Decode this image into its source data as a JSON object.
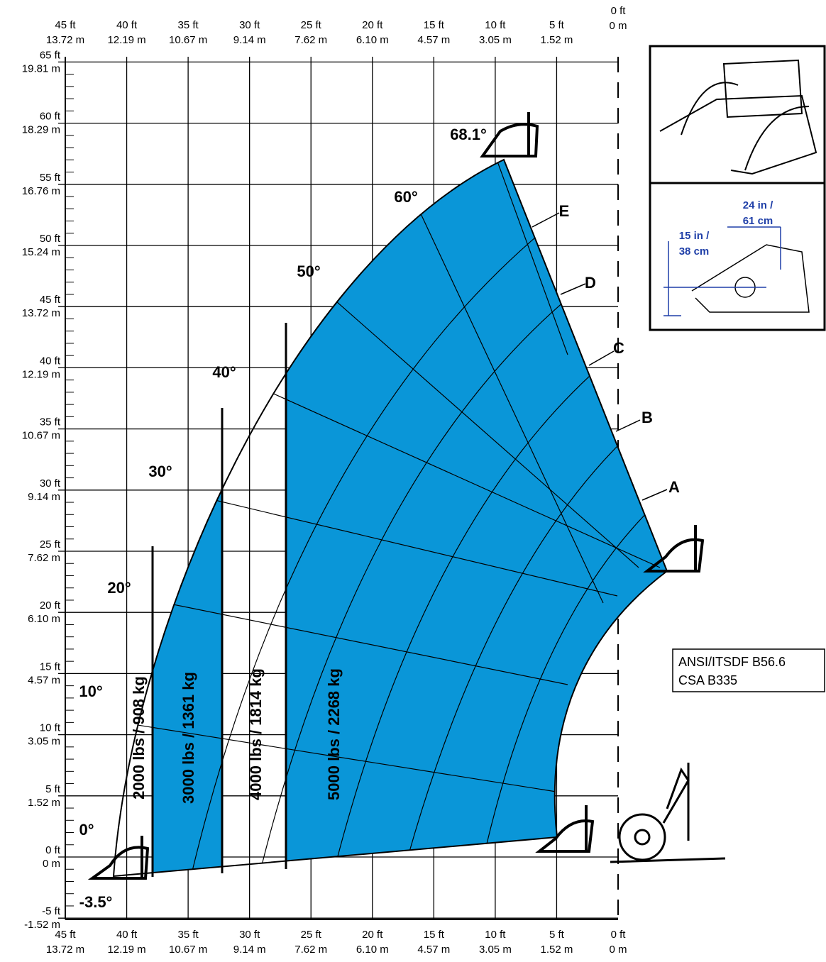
{
  "x_axis": [
    {
      "ft": "45 ft",
      "m": "13.72 m"
    },
    {
      "ft": "40 ft",
      "m": "12.19 m"
    },
    {
      "ft": "35 ft",
      "m": "10.67 m"
    },
    {
      "ft": "30 ft",
      "m": "9.14 m"
    },
    {
      "ft": "25 ft",
      "m": "7.62 m"
    },
    {
      "ft": "20 ft",
      "m": "6.10 m"
    },
    {
      "ft": "15 ft",
      "m": "4.57 m"
    },
    {
      "ft": "10 ft",
      "m": "3.05 m"
    },
    {
      "ft": "5 ft",
      "m": "1.52 m"
    },
    {
      "ft": "0 ft",
      "m": "0 m"
    }
  ],
  "y_axis": [
    {
      "ft": "65 ft",
      "m": "19.81 m"
    },
    {
      "ft": "60 ft",
      "m": "18.29 m"
    },
    {
      "ft": "55 ft",
      "m": "16.76 m"
    },
    {
      "ft": "50 ft",
      "m": "15.24 m"
    },
    {
      "ft": "45 ft",
      "m": "13.72 m"
    },
    {
      "ft": "40 ft",
      "m": "12.19 m"
    },
    {
      "ft": "35 ft",
      "m": "10.67 m"
    },
    {
      "ft": "30 ft",
      "m": "9.14 m"
    },
    {
      "ft": "25 ft",
      "m": "7.62 m"
    },
    {
      "ft": "20 ft",
      "m": "6.10 m"
    },
    {
      "ft": "15 ft",
      "m": "4.57 m"
    },
    {
      "ft": "10 ft",
      "m": "3.05 m"
    },
    {
      "ft": "5 ft",
      "m": "1.52 m"
    },
    {
      "ft": "0 ft",
      "m": "0 m"
    },
    {
      "ft": "-5 ft",
      "m": "-1.52 m"
    }
  ],
  "angles": [
    "68.1°",
    "60°",
    "50°",
    "40°",
    "30°",
    "20°",
    "10°",
    "0°",
    "-3.5°"
  ],
  "extensions": [
    "E",
    "D",
    "C",
    "B",
    "A"
  ],
  "load_zones": [
    "2000 lbs / 908 kg",
    "3000 lbs / 1361 kg",
    "4000 lbs / 1814 kg",
    "5000 lbs / 2268 kg"
  ],
  "attachment": {
    "width": [
      "24 in /",
      "61 cm"
    ],
    "height": [
      "15 in /",
      "38 cm"
    ]
  },
  "standards": [
    "ANSI/ITSDF B56.6",
    "CSA B335"
  ]
}
